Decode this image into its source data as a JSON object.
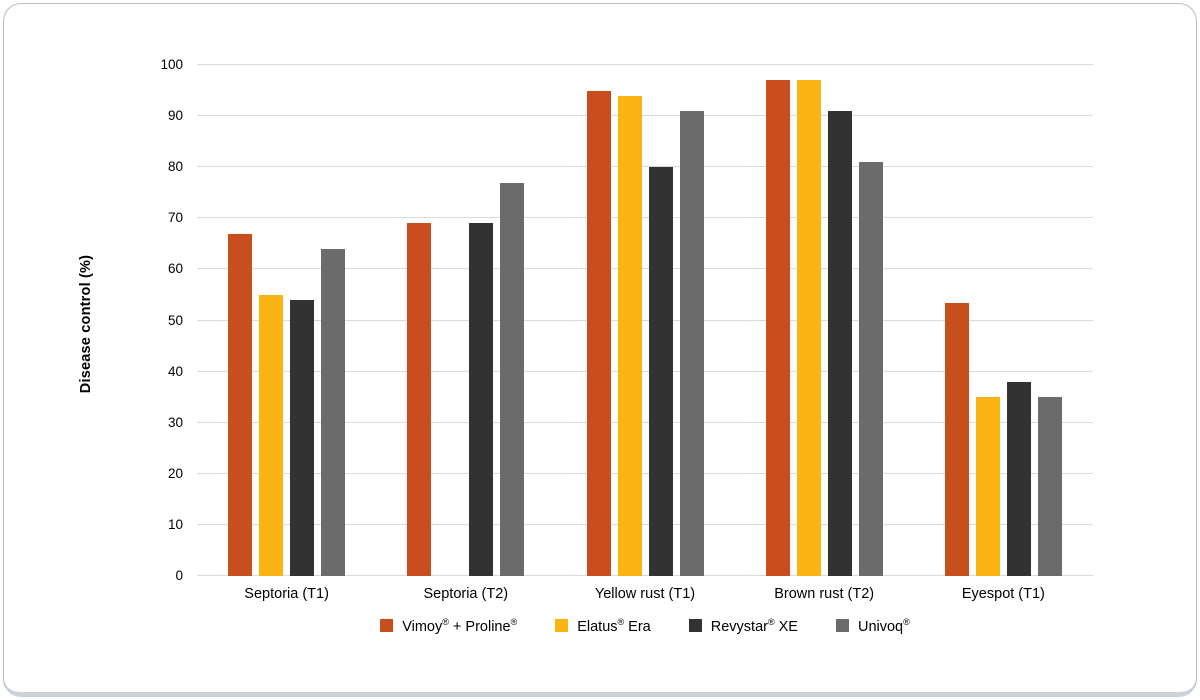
{
  "chart_data": {
    "type": "bar",
    "ylabel": "Disease control (%)",
    "ylim": [
      0,
      100
    ],
    "yticks": [
      0,
      10,
      20,
      30,
      40,
      50,
      60,
      70,
      80,
      90,
      100
    ],
    "grid": true,
    "legend_position": "bottom",
    "categories": [
      "Septoria (T1)",
      "Septoria (T2)",
      "Yellow rust (T1)",
      "Brown rust (T2)",
      "Eyespot (T1)"
    ],
    "series": [
      {
        "name": "Vimoy® + Proline®",
        "color": "#C94E1E",
        "values": [
          67,
          69,
          95,
          97,
          53.5
        ]
      },
      {
        "name": "Elatus® Era",
        "color": "#FBB414",
        "values": [
          55,
          null,
          94,
          97,
          35
        ]
      },
      {
        "name": "Revystar® XE",
        "color": "#323232",
        "values": [
          54,
          69,
          80,
          91,
          38
        ]
      },
      {
        "name": "Univoq®",
        "color": "#6B6B6B",
        "values": [
          64,
          77,
          91,
          81,
          35
        ]
      }
    ],
    "colors": {
      "gridline": "#dadada",
      "text": "#000000",
      "card_border": "#b6bcc7",
      "card_border_bottom": "#ccd1d9"
    }
  }
}
